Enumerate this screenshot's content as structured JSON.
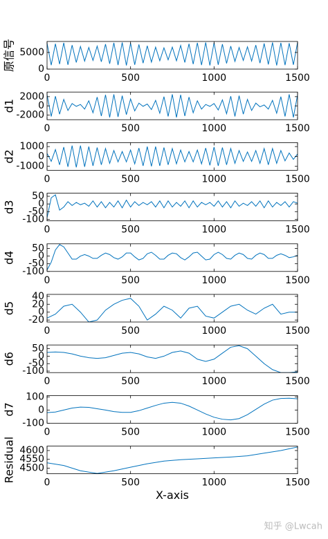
{
  "chart_data": [
    {
      "type": "line",
      "ylabel": "原信号",
      "color": "#0072BD",
      "xlim": [
        0,
        1500
      ],
      "xticks": [
        0,
        500,
        1000,
        1500
      ],
      "ylim": [
        0,
        8300
      ],
      "yticks": [
        0,
        5000
      ],
      "x": [
        0,
        25,
        50,
        75,
        100,
        125,
        150,
        175,
        200,
        225,
        250,
        275,
        300,
        325,
        350,
        375,
        400,
        425,
        450,
        475,
        500,
        525,
        550,
        575,
        600,
        625,
        650,
        675,
        700,
        725,
        750,
        775,
        800,
        825,
        850,
        875,
        900,
        925,
        950,
        975,
        1000,
        1025,
        1050,
        1075,
        1100,
        1125,
        1150,
        1175,
        1200,
        1225,
        1250,
        1275,
        1300,
        1325,
        1350,
        1375,
        1400,
        1425,
        1450,
        1475,
        1500
      ],
      "values": [
        7800,
        1200,
        7600,
        1500,
        7900,
        1300,
        7200,
        2000,
        6800,
        2400,
        6500,
        2600,
        6900,
        2200,
        7500,
        1600,
        7900,
        1200,
        8000,
        1100,
        7800,
        1300,
        7400,
        1800,
        7000,
        2100,
        6600,
        2500,
        6400,
        2800,
        6600,
        2500,
        7100,
        2000,
        7600,
        1500,
        7900,
        1200,
        8000,
        1100,
        7900,
        1300,
        7500,
        1700,
        6900,
        2300,
        6500,
        2600,
        6700,
        2400,
        7200,
        1800,
        7700,
        1400,
        8000,
        1100,
        7900,
        1200,
        7800,
        1300,
        8000
      ]
    },
    {
      "type": "line",
      "ylabel": "d1",
      "color": "#0072BD",
      "xlim": [
        0,
        1500
      ],
      "xticks": [
        0,
        500,
        1000,
        1500
      ],
      "ylim": [
        -3000,
        3000
      ],
      "yticks": [
        -2000,
        0,
        2000
      ],
      "x": [
        0,
        25,
        50,
        75,
        100,
        125,
        150,
        175,
        200,
        225,
        250,
        275,
        300,
        325,
        350,
        375,
        400,
        425,
        450,
        475,
        500,
        525,
        550,
        575,
        600,
        625,
        650,
        675,
        700,
        725,
        750,
        775,
        800,
        825,
        850,
        875,
        900,
        925,
        950,
        975,
        1000,
        1025,
        1050,
        1075,
        1100,
        1125,
        1150,
        1175,
        1200,
        1225,
        1250,
        1275,
        1300,
        1325,
        1350,
        1375,
        1400,
        1425,
        1450,
        1475,
        1500
      ],
      "values": [
        2400,
        -2300,
        2100,
        -1800,
        1400,
        -1000,
        500,
        -100,
        300,
        -700,
        1100,
        -1500,
        1900,
        -2200,
        2400,
        -2500,
        2500,
        -2400,
        2200,
        -1900,
        1500,
        -1100,
        600,
        -100,
        400,
        -800,
        1200,
        -1600,
        2000,
        -2300,
        2500,
        -2500,
        2400,
        -2200,
        1900,
        -1500,
        1100,
        -700,
        300,
        -100,
        500,
        -900,
        1300,
        -1700,
        2100,
        -2300,
        2200,
        -1800,
        1400,
        -1000,
        600,
        -200,
        200,
        -700,
        1200,
        -1600,
        2000,
        -2300,
        2500,
        -2500,
        2400
      ]
    },
    {
      "type": "line",
      "ylabel": "d2",
      "color": "#0072BD",
      "xlim": [
        0,
        1500
      ],
      "xticks": [
        0,
        500,
        1000,
        1500
      ],
      "ylim": [
        -1400,
        1400
      ],
      "yticks": [
        -1000,
        0,
        1000
      ],
      "x": [
        0,
        25,
        50,
        75,
        100,
        125,
        150,
        175,
        200,
        225,
        250,
        275,
        300,
        325,
        350,
        375,
        400,
        425,
        450,
        475,
        500,
        525,
        550,
        575,
        600,
        625,
        650,
        675,
        700,
        725,
        750,
        775,
        800,
        825,
        850,
        875,
        900,
        925,
        950,
        975,
        1000,
        1025,
        1050,
        1075,
        1100,
        1125,
        1150,
        1175,
        1200,
        1225,
        1250,
        1275,
        1300,
        1325,
        1350,
        1375,
        1400,
        1425,
        1450,
        1475,
        1500
      ],
      "values": [
        300,
        -500,
        700,
        -850,
        950,
        -1050,
        1100,
        -1100,
        1100,
        -1050,
        1000,
        -950,
        900,
        -850,
        800,
        -700,
        600,
        -550,
        500,
        -550,
        650,
        -750,
        850,
        -950,
        1000,
        -1000,
        1000,
        -950,
        900,
        -850,
        800,
        -750,
        650,
        -550,
        500,
        -550,
        650,
        -750,
        850,
        -900,
        950,
        -950,
        900,
        -850,
        800,
        -700,
        600,
        -500,
        450,
        -500,
        600,
        -700,
        800,
        -850,
        800,
        -700,
        600,
        -450,
        350,
        -300,
        250
      ]
    },
    {
      "type": "line",
      "ylabel": "d3",
      "color": "#0072BD",
      "xlim": [
        0,
        1500
      ],
      "xticks": [
        0,
        500,
        1000,
        1500
      ],
      "ylim": [
        -110,
        70
      ],
      "yticks": [
        -100,
        -50,
        0,
        50
      ],
      "x": [
        0,
        25,
        50,
        75,
        100,
        125,
        150,
        175,
        200,
        225,
        250,
        275,
        300,
        325,
        350,
        375,
        400,
        425,
        450,
        475,
        500,
        525,
        550,
        575,
        600,
        625,
        650,
        675,
        700,
        725,
        750,
        775,
        800,
        825,
        850,
        875,
        900,
        925,
        950,
        975,
        1000,
        1025,
        1050,
        1075,
        1100,
        1125,
        1150,
        1175,
        1200,
        1225,
        1250,
        1275,
        1300,
        1325,
        1350,
        1375,
        1400,
        1425,
        1450,
        1475,
        1500
      ],
      "values": [
        -90,
        40,
        60,
        -40,
        -20,
        15,
        -10,
        10,
        -5,
        5,
        -15,
        20,
        -20,
        15,
        -25,
        10,
        -20,
        20,
        -25,
        25,
        -20,
        15,
        -10,
        10,
        -5,
        15,
        -20,
        20,
        -25,
        20,
        -20,
        10,
        -15,
        20,
        -25,
        20,
        -20,
        10,
        -5,
        10,
        -15,
        20,
        -20,
        15,
        -25,
        20,
        -15,
        5,
        -10,
        15,
        -15,
        20,
        -25,
        20,
        -20,
        10,
        -10,
        15,
        -20,
        15,
        5
      ]
    },
    {
      "type": "line",
      "ylabel": "d4",
      "color": "#0072BD",
      "xlim": [
        0,
        1500
      ],
      "xticks": [
        0,
        500,
        1000,
        1500
      ],
      "ylim": [
        -100,
        80
      ],
      "yticks": [
        -100,
        -50,
        0,
        50
      ],
      "x": [
        0,
        25,
        50,
        75,
        100,
        125,
        150,
        175,
        200,
        225,
        250,
        275,
        300,
        325,
        350,
        375,
        400,
        425,
        450,
        475,
        500,
        525,
        550,
        575,
        600,
        625,
        650,
        675,
        700,
        725,
        750,
        775,
        800,
        825,
        850,
        875,
        900,
        925,
        950,
        975,
        1000,
        1025,
        1050,
        1075,
        1100,
        1125,
        1150,
        1175,
        1200,
        1225,
        1250,
        1275,
        1300,
        1325,
        1350,
        1375,
        1400,
        1425,
        1450,
        1475,
        1500
      ],
      "values": [
        -90,
        -40,
        40,
        75,
        60,
        20,
        -20,
        -20,
        0,
        10,
        0,
        -15,
        -15,
        5,
        20,
        10,
        -10,
        -20,
        -5,
        20,
        20,
        -5,
        -25,
        -15,
        15,
        25,
        5,
        -20,
        -20,
        5,
        20,
        15,
        -10,
        -25,
        -5,
        20,
        25,
        0,
        -25,
        -20,
        10,
        25,
        10,
        -15,
        -20,
        5,
        20,
        10,
        -15,
        -20,
        5,
        20,
        10,
        -15,
        -15,
        5,
        15,
        5,
        -10,
        -5,
        5
      ]
    },
    {
      "type": "line",
      "ylabel": "d5",
      "color": "#0072BD",
      "xlim": [
        0,
        1500
      ],
      "xticks": [
        0,
        500,
        1000,
        1500
      ],
      "ylim": [
        -25,
        45
      ],
      "yticks": [
        -20,
        0,
        20,
        40
      ],
      "x": [
        0,
        50,
        100,
        150,
        200,
        250,
        300,
        350,
        400,
        450,
        500,
        550,
        600,
        650,
        700,
        750,
        800,
        850,
        900,
        950,
        1000,
        1050,
        1100,
        1150,
        1200,
        1250,
        1300,
        1350,
        1400,
        1450,
        1500
      ],
      "values": [
        -15,
        -5,
        15,
        20,
        0,
        -25,
        -20,
        5,
        20,
        30,
        35,
        15,
        -20,
        -5,
        15,
        5,
        -15,
        10,
        15,
        -10,
        -15,
        0,
        15,
        20,
        5,
        -5,
        10,
        20,
        -5,
        0,
        0
      ]
    },
    {
      "type": "line",
      "ylabel": "d6",
      "color": "#0072BD",
      "xlim": [
        0,
        1500
      ],
      "xticks": [
        0,
        500,
        1000,
        1500
      ],
      "ylim": [
        -110,
        75
      ],
      "yticks": [
        -100,
        -50,
        0,
        50
      ],
      "x": [
        0,
        50,
        100,
        150,
        200,
        250,
        300,
        350,
        400,
        450,
        500,
        550,
        600,
        650,
        700,
        750,
        800,
        850,
        900,
        950,
        1000,
        1050,
        1100,
        1150,
        1200,
        1250,
        1300,
        1350,
        1400,
        1450,
        1500
      ],
      "values": [
        25,
        28,
        25,
        15,
        0,
        -10,
        -15,
        -10,
        5,
        20,
        25,
        15,
        -5,
        -15,
        0,
        25,
        35,
        20,
        -20,
        -35,
        -20,
        20,
        60,
        70,
        50,
        0,
        -50,
        -90,
        -110,
        -110,
        -105
      ]
    },
    {
      "type": "line",
      "ylabel": "d7",
      "color": "#0072BD",
      "xlim": [
        0,
        1500
      ],
      "xticks": [
        0,
        500,
        1000,
        1500
      ],
      "ylim": [
        -100,
        110
      ],
      "yticks": [
        -100,
        0,
        100
      ],
      "x": [
        0,
        50,
        100,
        150,
        200,
        250,
        300,
        350,
        400,
        450,
        500,
        550,
        600,
        650,
        700,
        750,
        800,
        850,
        900,
        950,
        1000,
        1050,
        1100,
        1150,
        1200,
        1250,
        1300,
        1350,
        1400,
        1450,
        1500
      ],
      "values": [
        -20,
        -15,
        0,
        15,
        22,
        20,
        10,
        0,
        -12,
        -18,
        -18,
        -5,
        15,
        35,
        52,
        58,
        52,
        30,
        0,
        -30,
        -55,
        -70,
        -75,
        -65,
        -35,
        5,
        45,
        75,
        88,
        90,
        85
      ]
    },
    {
      "type": "line",
      "ylabel": "Residual",
      "xlabel": "X-axis",
      "color": "#0072BD",
      "xlim": [
        0,
        1500
      ],
      "xticks": [
        0,
        500,
        1000,
        1500
      ],
      "ylim": [
        4468,
        4625
      ],
      "yticks": [
        4500,
        4550,
        4600
      ],
      "x": [
        0,
        100,
        200,
        300,
        400,
        500,
        600,
        700,
        800,
        900,
        1000,
        1100,
        1200,
        1300,
        1400,
        1500
      ],
      "values": [
        4530,
        4515,
        4485,
        4470,
        4485,
        4505,
        4525,
        4540,
        4548,
        4553,
        4558,
        4563,
        4570,
        4585,
        4600,
        4620
      ]
    }
  ],
  "watermark": "知乎 @Lwcah"
}
